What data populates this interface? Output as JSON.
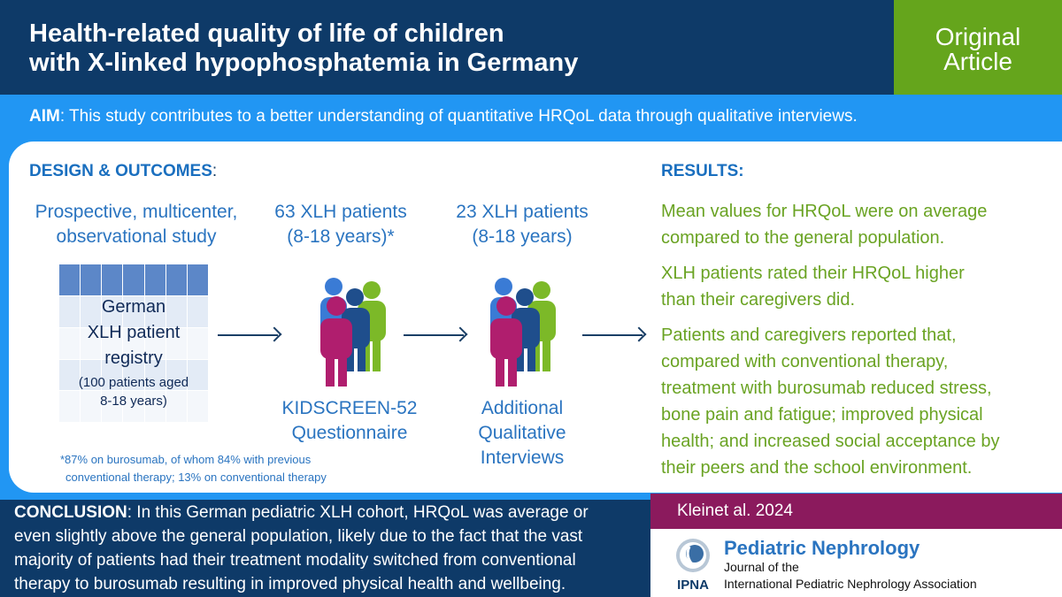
{
  "header": {
    "title_line1": "Health-related quality of life of children",
    "title_line2": "with X-linked hypophosphatemia  in Germany",
    "article_type_line1": "Original",
    "article_type_line2": "Article"
  },
  "aim": {
    "label": "AIM",
    "text": ": This study contributes to a better understanding of quantitative HRQoL data through qualitative interviews."
  },
  "design": {
    "title": "DESIGN & OUTCOMES",
    "title_suffix": ":",
    "study_type_line1": "Prospective, multicenter,",
    "study_type_line2": "observational study",
    "registry_line1": "German",
    "registry_line2": "XLH patient",
    "registry_line3": "registry",
    "registry_sub_line1": "(100 patients aged",
    "registry_sub_line2": "8-18 years)",
    "step2_line1": "63 XLH patients",
    "step2_line2": "(8-18 years)*",
    "step2_caption_line1": "KIDSCREEN-52",
    "step2_caption_line2": "Questionnaire",
    "step3_line1": "23 XLH patients",
    "step3_line2": "(8-18 years)",
    "step3_caption_line1": "Additional",
    "step3_caption_line2": "Qualitative",
    "step3_caption_line3": "Interviews",
    "footnote_line1": "*87% on burosumab, of whom 84% with previous",
    "footnote_line2": "conventional therapy; 13% on conventional therapy"
  },
  "results": {
    "title": "RESULTS:",
    "r1_line1": "Mean values for HRQoL were on average",
    "r1_line2": "compared to the general population.",
    "r2_line1": "XLH patients rated their HRQoL higher",
    "r2_line2": "than their caregivers did.",
    "r3_line1": "Patients and caregivers reported that,",
    "r3_line2": "compared with conventional therapy,",
    "r3_line3": "treatment with burosumab reduced stress,",
    "r3_line4": "bone pain and fatigue; improved physical",
    "r3_line5": "health; and increased social acceptance by",
    "r3_line6": "their peers and the school environment."
  },
  "conclusion": {
    "label": "CONCLUSION",
    "line1": ": In this German pediatric XLH cohort, HRQoL was average or",
    "line2": "even slightly above the general population, likely due to the fact that the vast",
    "line3": "majority of patients had their treatment modality switched from conventional",
    "line4": "therapy to burosumab resulting in improved physical health and wellbeing."
  },
  "citation": "Kleinet al. 2024",
  "journal": {
    "name": "Pediatric Nephrology",
    "sub_line1": "Journal of the",
    "sub_line2": "International  Pediatric Nephrology Association",
    "logo_text": "IPNA"
  },
  "colors": {
    "navy": "#0e3a68",
    "frame_blue": "#2196f3",
    "green": "#65a51c",
    "result_green": "#6aa323",
    "magenta": "#8b1a5d",
    "text_blue": "#2a74c0",
    "person_blue": "#3a7bd5",
    "person_green": "#7cb928",
    "person_navy": "#1f4e8c",
    "person_magenta": "#b01e6e"
  },
  "icons": [
    "people-group-icon",
    "arrow-right-icon",
    "ipna-globe-icon"
  ]
}
